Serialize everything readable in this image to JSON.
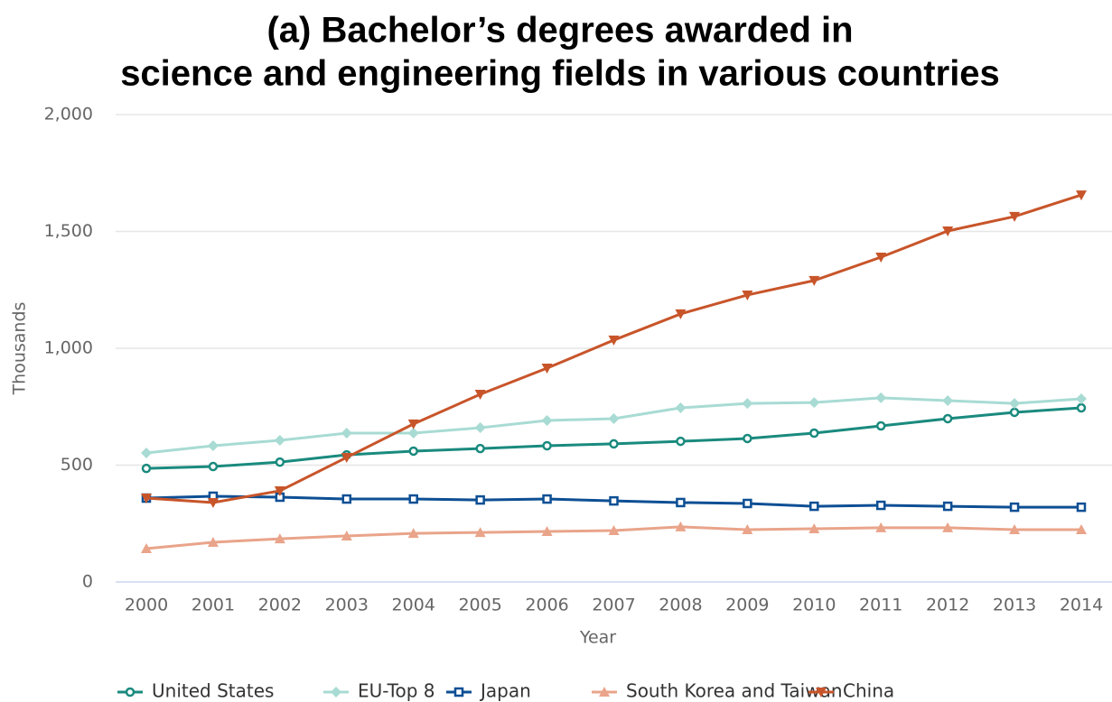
{
  "chart_data": {
    "type": "line",
    "title": [
      "(a)  Bachelor’s degrees awarded in",
      "science and engineering fields in various countries"
    ],
    "x_label": "Year",
    "y_label": "Thousands",
    "categories": [
      "2000",
      "2001",
      "2002",
      "2003",
      "2004",
      "2005",
      "2006",
      "2007",
      "2008",
      "2009",
      "2010",
      "2011",
      "2012",
      "2013",
      "2014"
    ],
    "ylim": [
      0,
      2000
    ],
    "yticks": [
      {
        "value": 0,
        "label": "0"
      },
      {
        "value": 500,
        "label": "500"
      },
      {
        "value": 1000,
        "label": "1,000"
      },
      {
        "value": 1500,
        "label": "1,500"
      },
      {
        "value": 2000,
        "label": "2,000"
      }
    ],
    "grid": true,
    "series": [
      {
        "name": "United States",
        "color": "#1a8a7e",
        "marker": "circle",
        "values": [
          486,
          494,
          513,
          544,
          560,
          571,
          583,
          591,
          602,
          614,
          637,
          668,
          699,
          726,
          745
        ]
      },
      {
        "name": "EU-Top 8",
        "color": "#a8dbd3",
        "marker": "diamond",
        "values": [
          552,
          583,
          606,
          637,
          637,
          660,
          691,
          699,
          745,
          764,
          768,
          788,
          776,
          764,
          784
        ]
      },
      {
        "name": "Japan",
        "color": "#0d4f94",
        "marker": "square",
        "values": [
          359,
          367,
          363,
          355,
          355,
          351,
          355,
          347,
          340,
          336,
          324,
          328,
          324,
          320,
          320
        ]
      },
      {
        "name": "South Korea and Taiwan",
        "color": "#e9a48a",
        "marker": "triangle-up",
        "values": [
          143,
          170,
          185,
          197,
          208,
          212,
          216,
          220,
          236,
          224,
          228,
          232,
          232,
          224,
          224
        ]
      },
      {
        "name": "China",
        "color": "#c8552a",
        "marker": "triangle-down",
        "values": [
          359,
          340,
          390,
          533,
          676,
          803,
          915,
          1035,
          1147,
          1228,
          1290,
          1390,
          1502,
          1564,
          1656
        ]
      }
    ]
  }
}
